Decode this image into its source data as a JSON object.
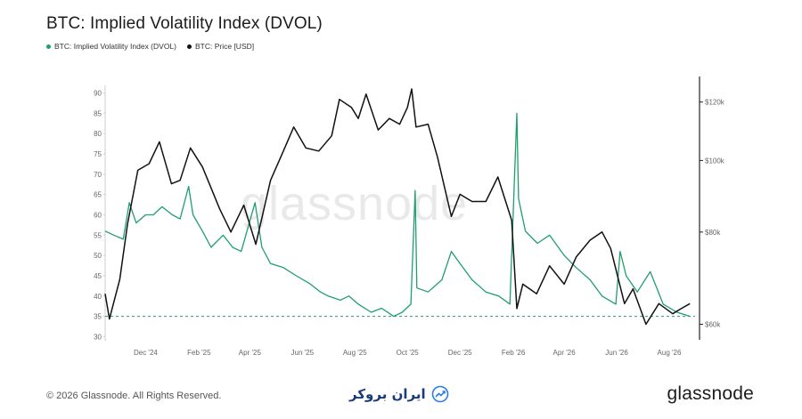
{
  "header": {
    "title": "BTC: Implied Volatility Index (DVOL)"
  },
  "legend": [
    {
      "label": "BTC: Implied Volatility Index (DVOL)",
      "color": "#1f9e6e"
    },
    {
      "label": "BTC: Price [USD]",
      "color": "#111111"
    }
  ],
  "watermark": "glassnode",
  "footer": {
    "copyright": "© 2026 Glassnode. All Rights Reserved.",
    "broker_logo": "ایران بروکر",
    "brand": "glassnode"
  },
  "colors": {
    "dvol": "#1f9e6e",
    "price": "#111111",
    "threshold": "#1f9e6e"
  },
  "chart_data": {
    "type": "line",
    "title": "BTC: Implied Volatility Index (DVOL)",
    "x_tick_labels": [
      "Dec '24",
      "Feb '25",
      "Apr '25",
      "Jun '25",
      "Aug '25",
      "Oct '25",
      "Dec '25",
      "Feb '26",
      "Apr '26",
      "Jun '26",
      "Aug '26"
    ],
    "x_range": [
      "2024-10-15",
      "2026-08-31"
    ],
    "y_left": {
      "ticks": [
        30,
        35,
        40,
        45,
        50,
        55,
        60,
        65,
        70,
        75,
        80,
        85,
        90
      ],
      "range": [
        29,
        91
      ]
    },
    "y_right": {
      "ticks": [
        "$60k",
        "$80k",
        "$100k",
        "$120k"
      ],
      "tick_values": [
        60000,
        80000,
        100000,
        120000
      ],
      "scale": "log",
      "range": [
        57000,
        125000
      ]
    },
    "threshold_line": {
      "axis": "left",
      "value": 35,
      "style": "dashed"
    },
    "grid": false,
    "legend_position": "top-left",
    "series": [
      {
        "name": "BTC: Implied Volatility Index (DVOL)",
        "axis": "left",
        "points": [
          [
            "2024-10-15",
            56
          ],
          [
            "2024-10-25",
            55
          ],
          [
            "2024-11-05",
            54
          ],
          [
            "2024-11-12",
            63
          ],
          [
            "2024-11-20",
            58
          ],
          [
            "2024-12-01",
            60
          ],
          [
            "2024-12-10",
            60
          ],
          [
            "2024-12-20",
            62
          ],
          [
            "2025-01-01",
            60
          ],
          [
            "2025-01-10",
            59
          ],
          [
            "2025-01-20",
            67
          ],
          [
            "2025-01-25",
            60
          ],
          [
            "2025-02-05",
            56
          ],
          [
            "2025-02-15",
            52
          ],
          [
            "2025-03-01",
            55
          ],
          [
            "2025-03-12",
            52
          ],
          [
            "2025-03-22",
            51
          ],
          [
            "2025-04-07",
            63
          ],
          [
            "2025-04-15",
            52
          ],
          [
            "2025-04-25",
            48
          ],
          [
            "2025-05-10",
            47
          ],
          [
            "2025-05-25",
            45
          ],
          [
            "2025-06-10",
            43
          ],
          [
            "2025-06-22",
            41
          ],
          [
            "2025-07-01",
            40
          ],
          [
            "2025-07-15",
            39
          ],
          [
            "2025-07-25",
            40
          ],
          [
            "2025-08-05",
            38
          ],
          [
            "2025-08-20",
            36
          ],
          [
            "2025-09-01",
            37
          ],
          [
            "2025-09-15",
            35
          ],
          [
            "2025-09-25",
            36
          ],
          [
            "2025-10-05",
            38
          ],
          [
            "2025-10-10",
            66
          ],
          [
            "2025-10-12",
            42
          ],
          [
            "2025-10-25",
            41
          ],
          [
            "2025-11-10",
            44
          ],
          [
            "2025-11-21",
            51
          ],
          [
            "2025-12-01",
            48
          ],
          [
            "2025-12-15",
            44
          ],
          [
            "2025-12-31",
            41
          ],
          [
            "2026-01-15",
            40
          ],
          [
            "2026-01-28",
            38
          ],
          [
            "2026-02-05",
            85
          ],
          [
            "2026-02-07",
            64
          ],
          [
            "2026-02-15",
            56
          ],
          [
            "2026-03-01",
            53
          ],
          [
            "2026-03-15",
            55
          ],
          [
            "2026-04-01",
            50
          ],
          [
            "2026-04-15",
            47
          ],
          [
            "2026-05-01",
            44
          ],
          [
            "2026-05-15",
            40
          ],
          [
            "2026-05-31",
            38
          ],
          [
            "2026-06-05",
            51
          ],
          [
            "2026-06-12",
            45
          ],
          [
            "2026-06-25",
            41
          ],
          [
            "2026-07-10",
            46
          ],
          [
            "2026-07-25",
            38
          ],
          [
            "2026-08-10",
            36
          ],
          [
            "2026-08-25",
            35
          ]
        ]
      },
      {
        "name": "BTC: Price [USD]",
        "axis": "right",
        "points": [
          [
            "2024-10-15",
            66000
          ],
          [
            "2024-10-20",
            61000
          ],
          [
            "2024-11-01",
            69000
          ],
          [
            "2024-11-10",
            82000
          ],
          [
            "2024-11-22",
            97000
          ],
          [
            "2024-12-05",
            99000
          ],
          [
            "2024-12-17",
            106000
          ],
          [
            "2024-12-31",
            93000
          ],
          [
            "2025-01-10",
            94000
          ],
          [
            "2025-01-22",
            104000
          ],
          [
            "2025-02-05",
            98000
          ],
          [
            "2025-02-25",
            86000
          ],
          [
            "2025-03-10",
            80000
          ],
          [
            "2025-03-25",
            87000
          ],
          [
            "2025-04-08",
            77000
          ],
          [
            "2025-04-25",
            94000
          ],
          [
            "2025-05-10",
            103000
          ],
          [
            "2025-05-22",
            111000
          ],
          [
            "2025-06-05",
            104000
          ],
          [
            "2025-06-20",
            103000
          ],
          [
            "2025-07-05",
            108000
          ],
          [
            "2025-07-14",
            121000
          ],
          [
            "2025-07-28",
            118000
          ],
          [
            "2025-08-05",
            114000
          ],
          [
            "2025-08-14",
            123000
          ],
          [
            "2025-08-28",
            110000
          ],
          [
            "2025-09-10",
            114000
          ],
          [
            "2025-09-22",
            112000
          ],
          [
            "2025-10-01",
            118000
          ],
          [
            "2025-10-06",
            125000
          ],
          [
            "2025-10-11",
            111000
          ],
          [
            "2025-10-25",
            112000
          ],
          [
            "2025-11-05",
            101000
          ],
          [
            "2025-11-21",
            84000
          ],
          [
            "2025-12-01",
            90000
          ],
          [
            "2025-12-15",
            88000
          ],
          [
            "2025-12-31",
            88000
          ],
          [
            "2026-01-14",
            95000
          ],
          [
            "2026-01-30",
            83000
          ],
          [
            "2026-02-05",
            63000
          ],
          [
            "2026-02-12",
            68000
          ],
          [
            "2026-02-28",
            66000
          ],
          [
            "2026-03-15",
            72000
          ],
          [
            "2026-04-01",
            68000
          ],
          [
            "2026-04-15",
            74000
          ],
          [
            "2026-05-01",
            78000
          ],
          [
            "2026-05-15",
            80000
          ],
          [
            "2026-05-25",
            76000
          ],
          [
            "2026-06-10",
            64000
          ],
          [
            "2026-06-20",
            67000
          ],
          [
            "2026-07-05",
            60000
          ],
          [
            "2026-07-20",
            64000
          ],
          [
            "2026-08-05",
            62000
          ],
          [
            "2026-08-15",
            63000
          ],
          [
            "2026-08-25",
            64000
          ]
        ]
      }
    ]
  }
}
